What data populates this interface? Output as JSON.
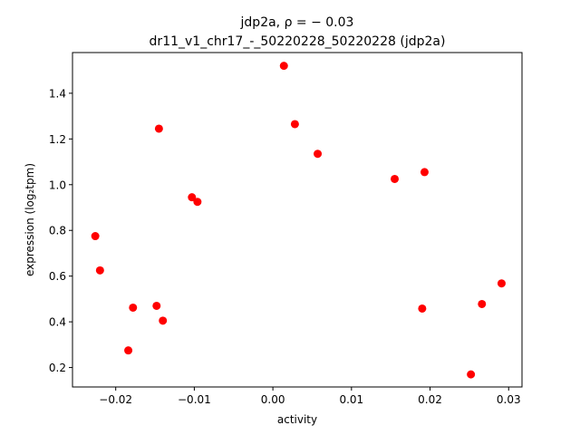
{
  "chart_data": {
    "type": "scatter",
    "title_line1": "jdp2a, ρ = − 0.03",
    "title_line2": "dr11_v1_chr17_-_50220228_50220228 (jdp2a)",
    "xlabel": "activity",
    "ylabel": "expression (log₂tpm)",
    "xlim": [
      -0.0255,
      0.0317
    ],
    "ylim": [
      0.115,
      1.578
    ],
    "xticks": [
      -0.02,
      -0.01,
      0.0,
      0.01,
      0.02,
      0.03
    ],
    "xtick_labels": [
      "−0.02",
      "−0.01",
      "0.00",
      "0.01",
      "0.02",
      "0.03"
    ],
    "yticks": [
      0.2,
      0.4,
      0.6,
      0.8,
      1.0,
      1.2,
      1.4
    ],
    "ytick_labels": [
      "0.2",
      "0.4",
      "0.6",
      "0.8",
      "1.0",
      "1.2",
      "1.4"
    ],
    "grid": false,
    "marker_color": "#ff0000",
    "points": [
      {
        "x": 0.0014,
        "y": 1.52
      },
      {
        "x": 0.0028,
        "y": 1.265
      },
      {
        "x": -0.0145,
        "y": 1.245
      },
      {
        "x": 0.0057,
        "y": 1.135
      },
      {
        "x": 0.0193,
        "y": 1.055
      },
      {
        "x": 0.0155,
        "y": 1.025
      },
      {
        "x": -0.0103,
        "y": 0.945
      },
      {
        "x": -0.0096,
        "y": 0.925
      },
      {
        "x": -0.0226,
        "y": 0.775
      },
      {
        "x": -0.022,
        "y": 0.625
      },
      {
        "x": 0.0291,
        "y": 0.568
      },
      {
        "x": 0.0266,
        "y": 0.478
      },
      {
        "x": -0.0148,
        "y": 0.47
      },
      {
        "x": -0.0178,
        "y": 0.462
      },
      {
        "x": 0.019,
        "y": 0.458
      },
      {
        "x": -0.014,
        "y": 0.405
      },
      {
        "x": -0.0184,
        "y": 0.275
      },
      {
        "x": 0.0252,
        "y": 0.17
      }
    ]
  }
}
